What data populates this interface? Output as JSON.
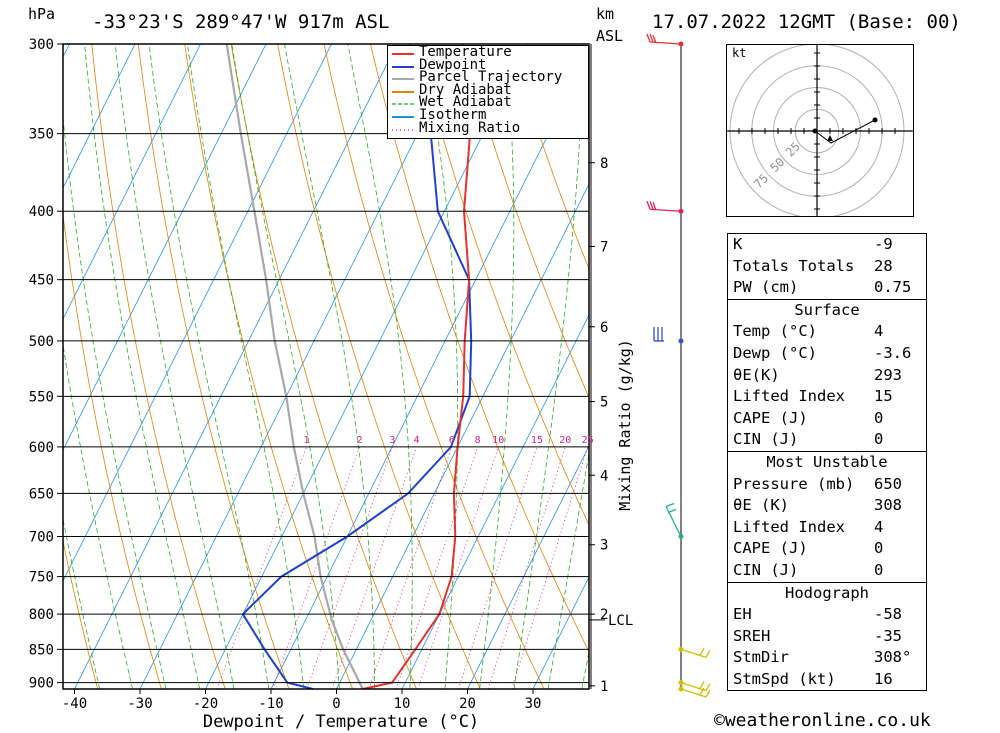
{
  "header": {
    "pressure_unit": "hPa",
    "location": "-33°23'S 289°47'W 917m ASL",
    "km_label": "km",
    "asl_label": "ASL",
    "datetime": "17.07.2022 12GMT (Base: 00)"
  },
  "chart_data": {
    "type": "skew-t log-p sounding",
    "xlabel": "Dewpoint / Temperature (°C)",
    "ylabel": "hPa",
    "pressure_ticks": [
      300,
      350,
      400,
      450,
      500,
      550,
      600,
      650,
      700,
      750,
      800,
      850,
      900
    ],
    "temperature_ticks": [
      -40,
      -30,
      -20,
      -10,
      0,
      10,
      20,
      30
    ],
    "height_km_ticks": [
      {
        "km": "1",
        "p": 905
      },
      {
        "km": "2",
        "p": 800
      },
      {
        "km": "3",
        "p": 710
      },
      {
        "km": "4",
        "p": 630
      },
      {
        "km": "5",
        "p": 555
      },
      {
        "km": "6",
        "p": 488
      },
      {
        "km": "7",
        "p": 425
      },
      {
        "km": "8",
        "p": 368
      }
    ],
    "lcl": {
      "label": "LCL",
      "p": 808
    },
    "mixing_ratio_axis_label": "Mixing Ratio (g/kg)",
    "mixing_ratio_labels": [
      "1",
      "2",
      "3",
      "4",
      "6",
      "8",
      "10",
      "15",
      "20",
      "25"
    ],
    "legend": [
      {
        "name": "Temperature",
        "color": "#e83030",
        "style": "solid"
      },
      {
        "name": "Dewpoint",
        "color": "#2040d0",
        "style": "solid"
      },
      {
        "name": "Parcel Trajectory",
        "color": "#a8a8a8",
        "style": "solid"
      },
      {
        "name": "Dry Adiabat",
        "color": "#e08000",
        "style": "solid"
      },
      {
        "name": "Wet Adiabat",
        "color": "#20b020",
        "style": "dashed"
      },
      {
        "name": "Isotherm",
        "color": "#2090e0",
        "style": "solid"
      },
      {
        "name": "Mixing Ratio",
        "color": "#d0208a",
        "style": "dotted"
      }
    ],
    "temperature_profile": [
      {
        "p": 910,
        "t": 4
      },
      {
        "p": 900,
        "t": 8
      },
      {
        "p": 850,
        "t": 9
      },
      {
        "p": 800,
        "t": 10
      },
      {
        "p": 750,
        "t": 9
      },
      {
        "p": 700,
        "t": 6.5
      },
      {
        "p": 650,
        "t": 3
      },
      {
        "p": 600,
        "t": 0
      },
      {
        "p": 550,
        "t": -3
      },
      {
        "p": 500,
        "t": -7
      },
      {
        "p": 450,
        "t": -11
      },
      {
        "p": 400,
        "t": -17
      },
      {
        "p": 350,
        "t": -22
      },
      {
        "p": 300,
        "t": -30
      }
    ],
    "dewpoint_profile": [
      {
        "p": 910,
        "t": -3.6
      },
      {
        "p": 900,
        "t": -8
      },
      {
        "p": 850,
        "t": -14
      },
      {
        "p": 800,
        "t": -20
      },
      {
        "p": 750,
        "t": -17
      },
      {
        "p": 700,
        "t": -10
      },
      {
        "p": 650,
        "t": -4
      },
      {
        "p": 600,
        "t": -1
      },
      {
        "p": 550,
        "t": -2
      },
      {
        "p": 500,
        "t": -6
      },
      {
        "p": 450,
        "t": -11
      },
      {
        "p": 400,
        "t": -21
      },
      {
        "p": 350,
        "t": -28
      },
      {
        "p": 300,
        "t": -38
      }
    ],
    "parcel_profile": [
      {
        "p": 910,
        "t": 4
      },
      {
        "p": 850,
        "t": -2
      },
      {
        "p": 808,
        "t": -6
      },
      {
        "p": 750,
        "t": -11
      },
      {
        "p": 700,
        "t": -15
      },
      {
        "p": 650,
        "t": -20
      },
      {
        "p": 600,
        "t": -25
      },
      {
        "p": 550,
        "t": -30
      },
      {
        "p": 500,
        "t": -36
      },
      {
        "p": 450,
        "t": -42
      },
      {
        "p": 400,
        "t": -49
      },
      {
        "p": 350,
        "t": -57
      },
      {
        "p": 300,
        "t": -66
      }
    ],
    "wind_barbs": [
      {
        "p": 300,
        "color": "#e83030"
      },
      {
        "p": 400,
        "color": "#e0205a"
      },
      {
        "p": 500,
        "color": "#3050d0"
      },
      {
        "p": 700,
        "color": "#20b090"
      },
      {
        "p": 850,
        "color": "#d0c000"
      },
      {
        "p": 900,
        "color": "#d0c000"
      },
      {
        "p": 910,
        "color": "#d0c000"
      }
    ]
  },
  "hodograph": {
    "unit": "kt",
    "ring_labels": [
      "25",
      "50",
      "75"
    ]
  },
  "indices": [
    {
      "title": "",
      "rows": [
        {
          "label": "K",
          "value": "-9"
        },
        {
          "label": "Totals Totals",
          "value": "28"
        },
        {
          "label": "PW (cm)",
          "value": "0.75"
        }
      ]
    },
    {
      "title": "Surface",
      "rows": [
        {
          "label": "Temp (°C)",
          "value": "4"
        },
        {
          "label": "Dewp (°C)",
          "value": "-3.6"
        },
        {
          "label": "θE(K)",
          "value": "293"
        },
        {
          "label": "Lifted Index",
          "value": "15"
        },
        {
          "label": "CAPE (J)",
          "value": "0"
        },
        {
          "label": "CIN (J)",
          "value": "0"
        }
      ]
    },
    {
      "title": "Most Unstable",
      "rows": [
        {
          "label": "Pressure (mb)",
          "value": "650"
        },
        {
          "label": "θE (K)",
          "value": "308"
        },
        {
          "label": "Lifted Index",
          "value": "4"
        },
        {
          "label": "CAPE (J)",
          "value": "0"
        },
        {
          "label": "CIN (J)",
          "value": "0"
        }
      ]
    },
    {
      "title": "Hodograph",
      "rows": [
        {
          "label": "EH",
          "value": "-58"
        },
        {
          "label": "SREH",
          "value": "-35"
        },
        {
          "label": "StmDir",
          "value": "308°"
        },
        {
          "label": "StmSpd (kt)",
          "value": "16"
        }
      ]
    }
  ],
  "footer": {
    "copyright": "©weatheronline.co.uk"
  }
}
